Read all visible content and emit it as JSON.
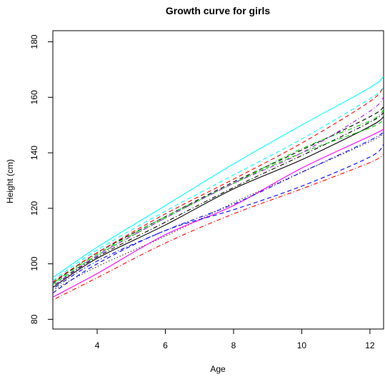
{
  "chart_data": {
    "type": "line",
    "title": "Growth curve for girls",
    "xlabel": "Age",
    "ylabel": "Height (cm)",
    "xlim": [
      2.7,
      12.4
    ],
    "ylim": [
      76.5,
      184
    ],
    "xticks": [
      4,
      6,
      8,
      10,
      12
    ],
    "yticks": [
      80,
      100,
      120,
      140,
      160,
      180
    ],
    "grid": false,
    "legend": "none",
    "series": [
      {
        "color": "#000000",
        "dash": "solid",
        "x": [
          2.7,
          4,
          6,
          8,
          10,
          12,
          12.4
        ],
        "y": [
          91.5,
          102,
          114,
          127,
          137.5,
          149.5,
          153
        ]
      },
      {
        "color": "#000000",
        "dash": "dashed",
        "x": [
          2.7,
          4,
          6,
          8,
          10,
          12,
          12.4
        ],
        "y": [
          93,
          104,
          117,
          129.5,
          141,
          153,
          156.5
        ]
      },
      {
        "color": "#000000",
        "dash": "dotted",
        "x": [
          2.7,
          4,
          6,
          8,
          10,
          12,
          12.4
        ],
        "y": [
          90.5,
          99,
          110,
          122,
          133,
          144,
          147
        ]
      },
      {
        "color": "#000000",
        "dash": "dotdash",
        "x": [
          2.7,
          4,
          6,
          8,
          10,
          12,
          12.4
        ],
        "y": [
          92,
          102.5,
          115,
          127.5,
          139,
          151,
          154.5
        ]
      },
      {
        "color": "#00ffff",
        "dash": "solid",
        "x": [
          2.7,
          4,
          6,
          8,
          10,
          12,
          12.4
        ],
        "y": [
          95,
          106,
          121,
          136,
          150,
          163.5,
          167.5
        ]
      },
      {
        "color": "#00ffff",
        "dash": "dashed",
        "x": [
          2.7,
          4,
          6,
          8,
          10,
          12,
          12.4
        ],
        "y": [
          94,
          105,
          119,
          132,
          145,
          159.5,
          163.5
        ]
      },
      {
        "color": "#ff0000",
        "dash": "dashed",
        "x": [
          2.7,
          4,
          6,
          8,
          10,
          12,
          12.4
        ],
        "y": [
          93.5,
          104,
          118,
          130.5,
          143.5,
          158.5,
          164
        ]
      },
      {
        "color": "#ff0000",
        "dash": "dotdash",
        "x": [
          2.7,
          4,
          6,
          8,
          10,
          12,
          12.4
        ],
        "y": [
          87,
          95,
          107.5,
          118,
          127,
          136.5,
          139.5
        ]
      },
      {
        "color": "#ff00ff",
        "dash": "solid",
        "x": [
          2.7,
          4,
          6,
          8,
          10,
          12,
          12.4
        ],
        "y": [
          88,
          96.5,
          110.5,
          121,
          134.5,
          146,
          148.5
        ]
      },
      {
        "color": "#0000ff",
        "dash": "dashed",
        "x": [
          2.7,
          4,
          6,
          8,
          10,
          12,
          12.4
        ],
        "y": [
          89.5,
          100,
          112,
          119.5,
          128,
          138.5,
          143
        ]
      },
      {
        "color": "#0000ff",
        "dash": "dotdash",
        "x": [
          2.7,
          4,
          6,
          8,
          10,
          12,
          12.4
        ],
        "y": [
          91,
          101,
          112,
          121.5,
          133,
          144.5,
          147.5
        ]
      },
      {
        "color": "#00cd00",
        "dash": "dashed",
        "x": [
          2.7,
          4,
          6,
          8,
          10,
          12,
          12.4
        ],
        "y": [
          92.5,
          103,
          116.5,
          129,
          140,
          149,
          152
        ]
      },
      {
        "color": "#00cd00",
        "dash": "dotdash",
        "x": [
          2.7,
          4,
          6,
          8,
          10,
          12,
          12.4
        ],
        "y": [
          93,
          103.5,
          117,
          129,
          141.5,
          151.5,
          155.5
        ]
      },
      {
        "color": "#a020f0",
        "dash": "dotdash",
        "x": [
          2.7,
          4,
          6,
          8,
          10,
          12,
          12.4
        ],
        "y": [
          92,
          103,
          116.5,
          129,
          140,
          155,
          160
        ]
      }
    ]
  }
}
